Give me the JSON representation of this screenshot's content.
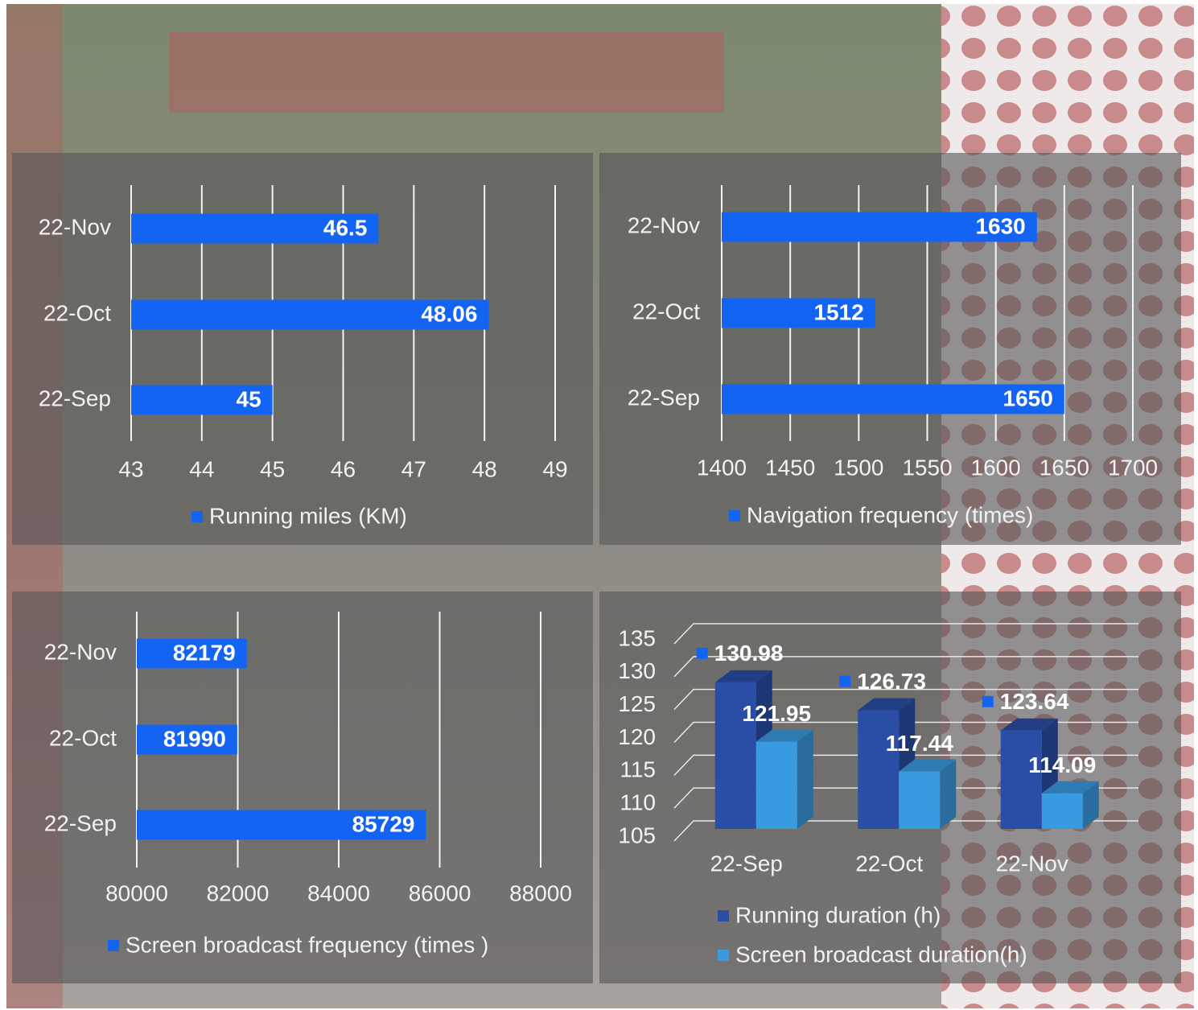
{
  "chart_data": [
    {
      "type": "hbar",
      "categories": [
        "22-Nov",
        "22-Oct",
        "22-Sep"
      ],
      "series": [
        {
          "name": "Running miles (KM)",
          "color": "#1464f4",
          "values": [
            46.5,
            48.06,
            45
          ]
        }
      ],
      "xlim": [
        43,
        49
      ],
      "xticks": [
        43,
        44,
        45,
        46,
        47,
        48,
        49
      ],
      "grid": true
    },
    {
      "type": "hbar",
      "categories": [
        "22-Nov",
        "22-Oct",
        "22-Sep"
      ],
      "series": [
        {
          "name": "Navigation frequency (times)",
          "color": "#1464f4",
          "values": [
            1630,
            1512,
            1650
          ]
        }
      ],
      "xlim": [
        1400,
        1700
      ],
      "xticks": [
        1400,
        1450,
        1500,
        1550,
        1600,
        1650,
        1700
      ],
      "grid": true
    },
    {
      "type": "hbar",
      "categories": [
        "22-Nov",
        "22-Oct",
        "22-Sep"
      ],
      "series": [
        {
          "name": "Screen broadcast frequency (times )",
          "color": "#1464f4",
          "values": [
            82179,
            81990,
            85729
          ]
        }
      ],
      "xlim": [
        80000,
        88000
      ],
      "xticks": [
        80000,
        82000,
        84000,
        86000,
        88000
      ],
      "grid": true
    },
    {
      "type": "bar3d",
      "categories": [
        "22-Sep",
        "22-Oct",
        "22-Nov"
      ],
      "series": [
        {
          "name": "Running duration (h)",
          "color": "#2a4ea6",
          "values": [
            130.98,
            126.73,
            123.64
          ]
        },
        {
          "name": "Screen broadcast duration(h)",
          "color": "#3a9ae0",
          "values": [
            121.95,
            117.44,
            114.09
          ]
        }
      ],
      "ylim": [
        105,
        135
      ],
      "yticks": [
        105,
        110,
        115,
        120,
        125,
        130,
        135
      ],
      "grid": true
    }
  ]
}
